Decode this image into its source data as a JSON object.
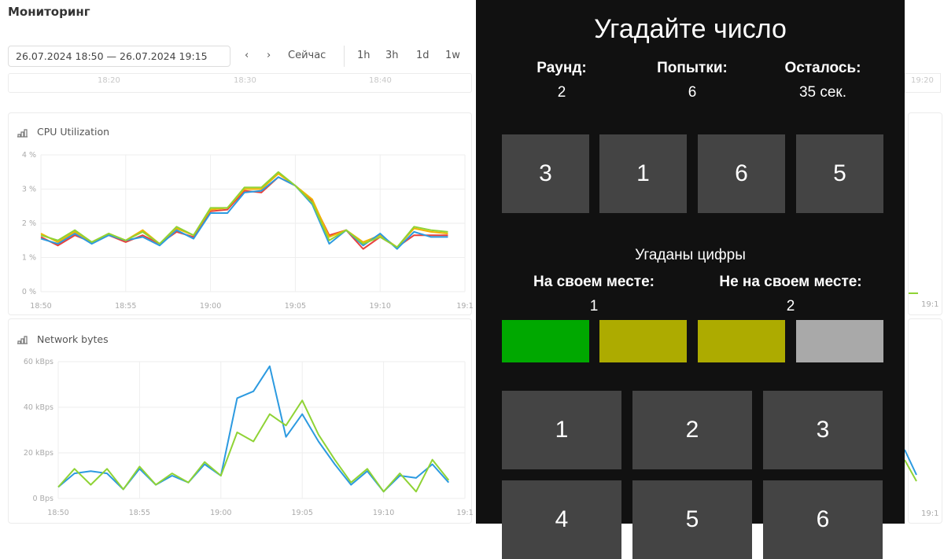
{
  "header": {
    "title": "Мониторинг"
  },
  "toolbar": {
    "date_range": "26.07.2024 18:50 — 26.07.2024 19:15",
    "prev": "‹",
    "next": "›",
    "now": "Сейчас",
    "presets": [
      "1h",
      "3h",
      "1d",
      "1w"
    ]
  },
  "timeline": {
    "labels": [
      "18:20",
      "18:30",
      "18:40"
    ],
    "right_label": "19:20"
  },
  "chart_data": [
    {
      "type": "line",
      "title": "CPU Utilization",
      "ylim": [
        0,
        4
      ],
      "yticks": [
        "0 %",
        "1 %",
        "2 %",
        "3 %",
        "4 %"
      ],
      "xticks": [
        "18:50",
        "18:55",
        "19:00",
        "19:05",
        "19:10",
        "19:1"
      ],
      "x": [
        "18:50",
        "18:51",
        "18:52",
        "18:53",
        "18:54",
        "18:55",
        "18:56",
        "18:57",
        "18:58",
        "18:59",
        "19:00",
        "19:01",
        "19:02",
        "19:03",
        "19:04",
        "19:05",
        "19:06",
        "19:07",
        "19:08",
        "19:09",
        "19:10",
        "19:11",
        "19:12",
        "19:13",
        "19:14"
      ],
      "grid": true,
      "series": [
        {
          "color": "#e8413c",
          "values": [
            1.6,
            1.35,
            1.65,
            1.45,
            1.65,
            1.45,
            1.65,
            1.4,
            1.75,
            1.6,
            2.35,
            2.4,
            2.95,
            2.9,
            3.35,
            3.1,
            2.65,
            1.65,
            1.8,
            1.25,
            1.6,
            1.3,
            1.65,
            1.65,
            1.65
          ]
        },
        {
          "color": "#f0b400",
          "values": [
            1.7,
            1.45,
            1.75,
            1.45,
            1.7,
            1.5,
            1.8,
            1.4,
            1.85,
            1.65,
            2.4,
            2.45,
            3.0,
            3.0,
            3.45,
            3.1,
            2.7,
            1.6,
            1.8,
            1.45,
            1.65,
            1.3,
            1.85,
            1.75,
            1.7
          ]
        },
        {
          "color": "#2c9ae0",
          "values": [
            1.55,
            1.4,
            1.7,
            1.4,
            1.65,
            1.5,
            1.6,
            1.35,
            1.8,
            1.55,
            2.3,
            2.3,
            2.9,
            2.95,
            3.35,
            3.1,
            2.55,
            1.4,
            1.8,
            1.35,
            1.7,
            1.25,
            1.75,
            1.6,
            1.6
          ]
        },
        {
          "color": "#8fd335",
          "values": [
            1.65,
            1.5,
            1.8,
            1.45,
            1.7,
            1.5,
            1.75,
            1.4,
            1.9,
            1.65,
            2.45,
            2.45,
            3.05,
            3.05,
            3.5,
            3.1,
            2.6,
            1.5,
            1.8,
            1.4,
            1.6,
            1.3,
            1.9,
            1.8,
            1.75
          ]
        }
      ]
    },
    {
      "type": "line",
      "title": "Network bytes",
      "ylim": [
        0,
        60
      ],
      "yticks": [
        "0 Bps",
        "20 kBps",
        "40 kBps",
        "60 kBps"
      ],
      "xticks": [
        "18:50",
        "18:55",
        "19:00",
        "19:05",
        "19:10",
        "19:1"
      ],
      "x": [
        "18:50",
        "18:51",
        "18:52",
        "18:53",
        "18:54",
        "18:55",
        "18:56",
        "18:57",
        "18:58",
        "18:59",
        "19:00",
        "19:01",
        "19:02",
        "19:03",
        "19:04",
        "19:05",
        "19:06",
        "19:07",
        "19:08",
        "19:09",
        "19:10",
        "19:11",
        "19:12",
        "19:13",
        "19:14"
      ],
      "grid": true,
      "series": [
        {
          "color": "#2c9ae0",
          "values": [
            5,
            11,
            12,
            11,
            4,
            13,
            6,
            10,
            7,
            15,
            10,
            44,
            47,
            58,
            27,
            37,
            25,
            15,
            6,
            12,
            3,
            10,
            9,
            15,
            7
          ]
        },
        {
          "color": "#8fd335",
          "values": [
            5,
            13,
            6,
            13,
            4,
            14,
            6,
            11,
            7,
            16,
            10,
            29,
            25,
            37,
            32,
            43,
            28,
            17,
            7,
            13,
            3,
            11,
            3,
            17,
            8
          ]
        }
      ]
    }
  ],
  "game": {
    "title": "Угадайте число",
    "round_label": "Раунд:",
    "round": "2",
    "attempts_label": "Попытки:",
    "attempts": "6",
    "remaining_label": "Осталось:",
    "remaining": "35 сек.",
    "digits": [
      "3",
      "1",
      "6",
      "5"
    ],
    "guessed_label": "Угаданы цифры",
    "in_place_label": "На своем месте:",
    "in_place": "1",
    "out_place_label": "Не на своем месте:",
    "out_place": "2",
    "indicator_colors": [
      "#00a800",
      "#adab00",
      "#adab00",
      "#a9a9a9"
    ],
    "keypad": [
      "1",
      "2",
      "3",
      "4",
      "5",
      "6"
    ]
  }
}
